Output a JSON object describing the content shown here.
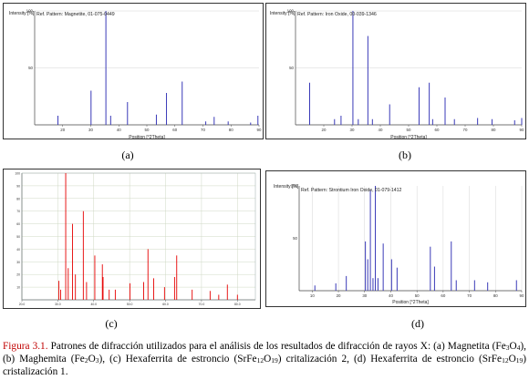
{
  "panels": [
    {
      "id": "a",
      "sub_label": "(a)",
      "ylabel": "Intensity [%]",
      "xlabel": "Position [°2Theta]",
      "legend": "Ref. Pattern: Magnetite, 01-075-0449",
      "line_color": "#3a3ab8",
      "chart_data": {
        "type": "bar",
        "ylim": [
          0,
          100
        ],
        "xlim": [
          10,
          90
        ],
        "y_ticks": [
          "100",
          "50"
        ],
        "x_ticks": [
          "20",
          "30",
          "40",
          "50",
          "60",
          "70",
          "80",
          "90"
        ],
        "peaks": [
          [
            18.3,
            8
          ],
          [
            30.1,
            30
          ],
          [
            35.4,
            100
          ],
          [
            37.1,
            8
          ],
          [
            43.1,
            20
          ],
          [
            53.4,
            9
          ],
          [
            57.0,
            28
          ],
          [
            62.6,
            38
          ],
          [
            71.0,
            3
          ],
          [
            74.0,
            7
          ],
          [
            79.0,
            3
          ],
          [
            87.0,
            2
          ],
          [
            89.6,
            8
          ]
        ]
      }
    },
    {
      "id": "b",
      "sub_label": "(b)",
      "ylabel": "Intensity [%]",
      "xlabel": "Position [°2Theta]",
      "legend": "Ref. Pattern: Iron Oxide, 00-039-1346",
      "line_color": "#3a3ab8",
      "chart_data": {
        "type": "bar",
        "ylim": [
          0,
          100
        ],
        "xlim": [
          10,
          90
        ],
        "y_ticks": [
          "100",
          "50"
        ],
        "x_ticks": [
          "20",
          "30",
          "40",
          "50",
          "60",
          "70",
          "80",
          "90"
        ],
        "peaks": [
          [
            15.0,
            37
          ],
          [
            23.8,
            5
          ],
          [
            26.1,
            8
          ],
          [
            30.3,
            100
          ],
          [
            32.2,
            5
          ],
          [
            35.6,
            78
          ],
          [
            37.2,
            5
          ],
          [
            43.3,
            18
          ],
          [
            53.7,
            33
          ],
          [
            57.3,
            37
          ],
          [
            58.5,
            5
          ],
          [
            62.9,
            24
          ],
          [
            66.2,
            5
          ],
          [
            74.4,
            6
          ],
          [
            79.5,
            5
          ],
          [
            87.5,
            4
          ],
          [
            90.0,
            6
          ]
        ]
      }
    },
    {
      "id": "c",
      "sub_label": "(c)",
      "ylabel": "",
      "xlabel": "",
      "legend": "",
      "line_color": "#e60000",
      "chart_data": {
        "type": "bar",
        "ylim": [
          0,
          100
        ],
        "xlim": [
          20,
          85
        ],
        "y_ticks": [
          "100",
          "90",
          "80",
          "70",
          "60",
          "50",
          "40",
          "30",
          "20",
          "10"
        ],
        "x_ticks": [
          "20.0",
          "30.0",
          "40.0",
          "50.0",
          "60.0",
          "70.0",
          "80.0"
        ],
        "peaks": [
          [
            30.3,
            15
          ],
          [
            30.8,
            8
          ],
          [
            32.2,
            100
          ],
          [
            32.9,
            25
          ],
          [
            34.1,
            60
          ],
          [
            34.9,
            20
          ],
          [
            37.1,
            70
          ],
          [
            38.0,
            14
          ],
          [
            40.3,
            35
          ],
          [
            42.4,
            28
          ],
          [
            42.6,
            18
          ],
          [
            44.3,
            8
          ],
          [
            46.0,
            8
          ],
          [
            50.1,
            13
          ],
          [
            53.9,
            14
          ],
          [
            55.1,
            40
          ],
          [
            56.7,
            17
          ],
          [
            59.7,
            10
          ],
          [
            62.5,
            18
          ],
          [
            63.1,
            35
          ],
          [
            67.4,
            8
          ],
          [
            72.4,
            7
          ],
          [
            74.8,
            4
          ],
          [
            77.2,
            12
          ],
          [
            80.0,
            4
          ]
        ]
      }
    },
    {
      "id": "d",
      "sub_label": "(d)",
      "ylabel": "Intensity [%]",
      "xlabel": "Position [°2Theta]",
      "legend": "Ref. Pattern: Strontium Iron Oxide, 01-079-1412",
      "line_color": "#3a3ab8",
      "chart_data": {
        "type": "bar",
        "ylim": [
          0,
          100
        ],
        "xlim": [
          5,
          90
        ],
        "y_ticks": [
          "100",
          "50"
        ],
        "x_ticks": [
          "10",
          "20",
          "30",
          "40",
          "50",
          "60",
          "70",
          "80",
          "90"
        ],
        "peaks": [
          [
            11.0,
            5
          ],
          [
            19.0,
            7
          ],
          [
            23.0,
            14
          ],
          [
            30.3,
            47
          ],
          [
            31.2,
            30
          ],
          [
            32.2,
            96
          ],
          [
            33.2,
            12
          ],
          [
            34.1,
            100
          ],
          [
            35.1,
            12
          ],
          [
            37.1,
            45
          ],
          [
            40.3,
            30
          ],
          [
            42.4,
            22
          ],
          [
            55.1,
            42
          ],
          [
            56.7,
            23
          ],
          [
            63.1,
            47
          ],
          [
            65.0,
            10
          ],
          [
            72.0,
            10
          ],
          [
            77.0,
            8
          ],
          [
            88.0,
            10
          ]
        ]
      }
    }
  ],
  "caption": {
    "fig_label": "Figura 3.1.",
    "text_1": " Patrones de difracción utilizados para el análisis de los resultados de difracción de rayos X: (a) Magnetita (Fe",
    "sub_1": "3",
    "text_2": "O",
    "sub_2": "4",
    "text_3": "), (b) Maghemita (Fe",
    "sub_3": "2",
    "text_4": "O",
    "sub_4": "3",
    "text_5": "), (c) Hexaferrita de estroncio (SrFe",
    "sub_5": "12",
    "text_6": "O",
    "sub_6": "19",
    "text_7": ") critalización 2, (d) Hexaferrita de estroncio (SrFe",
    "sub_7": "12",
    "text_8": "O",
    "sub_8": "19",
    "text_9": ") cristalización 1."
  }
}
